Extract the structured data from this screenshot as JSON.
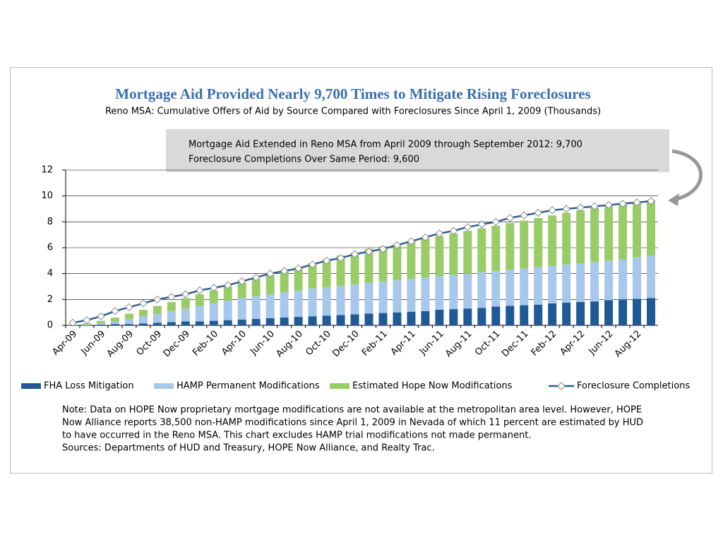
{
  "chart_data": {
    "type": "bar",
    "title": "Mortgage Aid Provided Nearly 9,700 Times to Mitigate Rising Foreclosures",
    "subtitle": "Reno MSA: Cumulative Offers of Aid by Source Compared with Foreclosures Since April 1, 2009  (Thousands)",
    "annotations": [
      "Mortgage Aid Extended in Reno MSA from April 2009 through September 2012: 9,700",
      "Foreclosure Completions Over Same Period: 9,600"
    ],
    "categories": [
      "Apr-09",
      null,
      "Jun-09",
      null,
      "Aug-09",
      null,
      "Oct-09",
      null,
      "Dec-09",
      null,
      "Feb-10",
      null,
      "Apr-10",
      null,
      "Jun-10",
      null,
      "Aug-10",
      null,
      "Oct-10",
      null,
      "Dec-10",
      null,
      "Feb-11",
      null,
      "Apr-11",
      null,
      "Jun-11",
      null,
      "Aug-11",
      null,
      "Oct-11",
      null,
      "Dec-11",
      null,
      "Feb-12",
      null,
      "Apr-12",
      null,
      "Jun-12",
      null,
      "Aug-12",
      null
    ],
    "stacked": true,
    "series": [
      {
        "name": "FHA Loss Mitigation",
        "type": "bar",
        "color": "#1f5a96",
        "values": [
          0.0,
          0.0,
          0.05,
          0.1,
          0.1,
          0.15,
          0.2,
          0.25,
          0.3,
          0.3,
          0.35,
          0.4,
          0.45,
          0.5,
          0.55,
          0.6,
          0.65,
          0.7,
          0.75,
          0.8,
          0.85,
          0.9,
          0.95,
          1.0,
          1.05,
          1.1,
          1.2,
          1.25,
          1.3,
          1.35,
          1.45,
          1.5,
          1.55,
          1.6,
          1.7,
          1.75,
          1.8,
          1.85,
          1.95,
          2.0,
          2.05,
          2.1
        ]
      },
      {
        "name": "HAMP Permanent Modifications",
        "type": "bar",
        "color": "#a7c7eb",
        "values": [
          0,
          0.05,
          0.1,
          0.2,
          0.4,
          0.55,
          0.7,
          0.85,
          1.0,
          1.2,
          1.35,
          1.5,
          1.65,
          1.75,
          1.85,
          1.95,
          2.05,
          2.15,
          2.2,
          2.25,
          2.3,
          2.4,
          2.45,
          2.5,
          2.55,
          2.6,
          2.6,
          2.65,
          2.7,
          2.75,
          2.75,
          2.8,
          2.85,
          2.9,
          2.9,
          2.95,
          3.0,
          3.05,
          3.05,
          3.1,
          3.2,
          3.3
        ]
      },
      {
        "name": "Estimated Hope Now Modifications",
        "type": "bar",
        "color": "#99cc66",
        "values": [
          0.05,
          0.1,
          0.2,
          0.3,
          0.4,
          0.5,
          0.6,
          0.7,
          0.8,
          0.9,
          1.0,
          1.1,
          1.2,
          1.35,
          1.5,
          1.65,
          1.8,
          1.95,
          2.15,
          2.35,
          2.45,
          2.6,
          2.7,
          2.8,
          2.9,
          3.0,
          3.1,
          3.2,
          3.3,
          3.4,
          3.5,
          3.6,
          3.7,
          3.8,
          3.9,
          4.0,
          4.1,
          4.2,
          4.3,
          4.3,
          4.3,
          4.3
        ]
      },
      {
        "name": "Foreclosure Completions",
        "type": "line",
        "color": "#2e5f95",
        "values": [
          0.2,
          0.4,
          0.7,
          1.1,
          1.4,
          1.7,
          2.0,
          2.2,
          2.4,
          2.7,
          2.9,
          3.1,
          3.4,
          3.7,
          4.0,
          4.2,
          4.4,
          4.7,
          5.0,
          5.2,
          5.5,
          5.7,
          5.9,
          6.2,
          6.5,
          6.8,
          7.1,
          7.3,
          7.6,
          7.8,
          8.0,
          8.3,
          8.5,
          8.7,
          8.9,
          9.0,
          9.1,
          9.2,
          9.3,
          9.4,
          9.5,
          9.6
        ]
      }
    ],
    "ylim": [
      0,
      12
    ],
    "yticks": [
      0,
      2,
      4,
      6,
      8,
      10,
      12
    ],
    "grid": false,
    "notes": [
      "Note: Data on HOPE Now proprietary mortgage modifications are not available at the metropolitan area level. However, HOPE",
      "Now Alliance reports 38,500 non-HAMP modifications since April 1, 2009 in Nevada of which 11 percent are estimated by HUD",
      "to have occurred in the Reno MSA. This chart excludes HAMP trial modifications not made permanent.",
      "Sources: Departments of HUD and Treasury, HOPE Now Alliance, and Realty Trac."
    ]
  }
}
